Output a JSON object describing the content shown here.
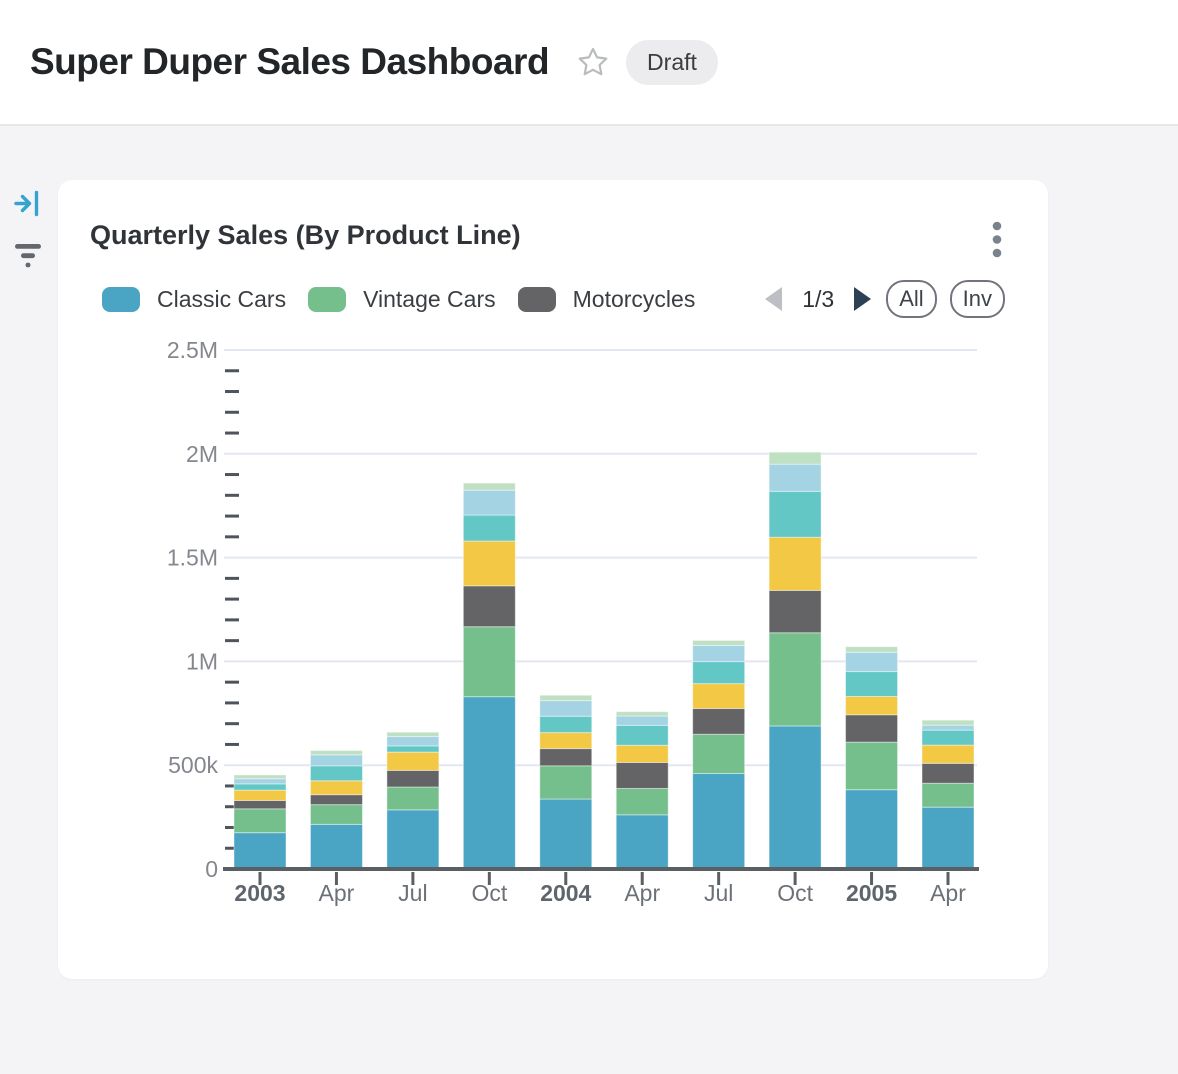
{
  "header": {
    "title": "Super Duper Sales Dashboard",
    "badge": "Draft"
  },
  "icons": {
    "favorite": "star-outline",
    "panel_toggle": "arrow-to-bar-right",
    "filter": "filter-funnel-lines",
    "card_menu": "kebab-vertical-dots",
    "legend_prev": "triangle-left",
    "legend_next": "triangle-right"
  },
  "colors": {
    "accent_blue": "#35a3cf",
    "page_bg": "#f4f4f6",
    "card_bg": "#ffffff",
    "gridline": "#e3e7f2",
    "axis": "#5a5f64",
    "minor_tick": "#4f545a",
    "y_label": "#84888e",
    "x_label": "#6c7177",
    "x_label_bold": "#5f656c",
    "separator": "rgba(255,255,255,0.45)"
  },
  "card": {
    "title": "Quarterly Sales (By Product Line)",
    "legend": {
      "items": [
        {
          "label": "Classic Cars",
          "color": "#4aa4c4"
        },
        {
          "label": "Vintage Cars",
          "color": "#74bf8b"
        },
        {
          "label": "Motorcycles",
          "color": "#646467"
        }
      ],
      "pagination": {
        "current_page": "1/3",
        "prev_enabled": false,
        "next_enabled": true
      },
      "buttons": {
        "all": "All",
        "invert": "Inv"
      }
    }
  },
  "chart_data": {
    "type": "bar",
    "stacked": true,
    "title": "Quarterly Sales (By Product Line)",
    "legend_position": "top",
    "grid": "horizontal-major",
    "categories": [
      "2003",
      "Apr",
      "Jul",
      "Oct",
      "2004",
      "Apr",
      "Jul",
      "Oct",
      "2005",
      "Apr"
    ],
    "categories_bold": [
      true,
      false,
      false,
      false,
      true,
      false,
      false,
      false,
      true,
      false
    ],
    "ylim": [
      0,
      2500000
    ],
    "minor_tick_interval": 100000,
    "y_ticks": [
      {
        "value": 0,
        "label": "0"
      },
      {
        "value": 500000,
        "label": "500k"
      },
      {
        "value": 1000000,
        "label": "1M"
      },
      {
        "value": 1500000,
        "label": "1.5M"
      },
      {
        "value": 2000000,
        "label": "2M"
      },
      {
        "value": 2500000,
        "label": "2.5M"
      }
    ],
    "series": [
      {
        "name": "Classic Cars",
        "color": "#4aa4c4",
        "legend_visible": true,
        "values": [
          175000,
          215000,
          285000,
          830000,
          337000,
          261000,
          460000,
          689000,
          382000,
          298000
        ]
      },
      {
        "name": "Vintage Cars",
        "color": "#74bf8b",
        "legend_visible": true,
        "values": [
          115000,
          95000,
          110000,
          337000,
          160000,
          127000,
          189000,
          449000,
          229000,
          115000
        ]
      },
      {
        "name": "Motorcycles",
        "color": "#646467",
        "legend_visible": true,
        "values": [
          40000,
          48000,
          80000,
          197000,
          83000,
          125000,
          124000,
          204000,
          132000,
          96000
        ]
      },
      {
        "name": "series-4-label-not-visible",
        "color": "#f3c845",
        "legend_visible": false,
        "values": [
          50000,
          67000,
          88000,
          216000,
          77000,
          83000,
          120000,
          256000,
          88000,
          88000
        ]
      },
      {
        "name": "series-5-label-not-visible",
        "color": "#62c7c5",
        "legend_visible": false,
        "values": [
          30000,
          72000,
          30000,
          125000,
          79000,
          96000,
          106000,
          221000,
          120000,
          72000
        ]
      },
      {
        "name": "series-6-label-not-visible",
        "color": "#a4d3e4",
        "legend_visible": false,
        "values": [
          25000,
          53000,
          45000,
          120000,
          75000,
          45000,
          78000,
          131000,
          93000,
          24000
        ]
      },
      {
        "name": "series-7-label-not-visible",
        "color": "#c0e0c4",
        "legend_visible": false,
        "values": [
          18000,
          21000,
          21000,
          34000,
          26000,
          21000,
          24000,
          58000,
          27000,
          24000
        ]
      }
    ]
  }
}
